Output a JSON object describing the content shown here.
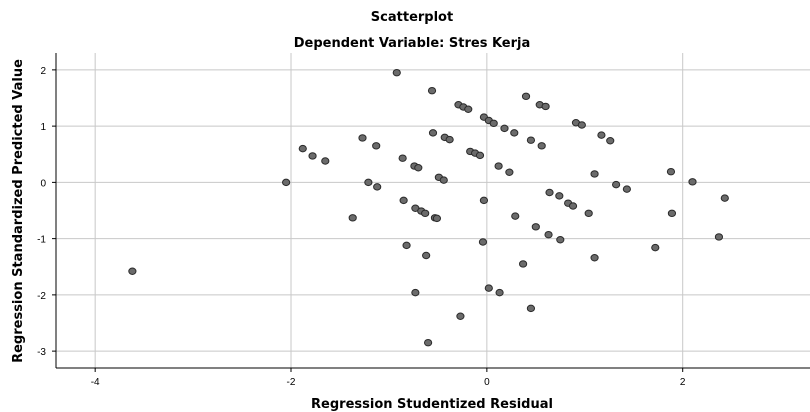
{
  "chart_data": {
    "type": "scatter",
    "title": "Scatterplot",
    "subtitle": "Dependent Variable: Stres Kerja",
    "xlabel": "Regression Studentized Residual",
    "ylabel": "Regression Standardized Predicted Value",
    "xlim": [
      -4.4,
      3.3
    ],
    "ylim": [
      -3.3,
      2.3
    ],
    "xticks": [
      -4,
      -2,
      0,
      2
    ],
    "xtick_labels": [
      "-4",
      "-2",
      "0",
      "2"
    ],
    "yticks": [
      2,
      1,
      0,
      -1,
      -2,
      -3
    ],
    "ytick_labels": [
      "2",
      "1",
      "0",
      "-1",
      "-2",
      "-3"
    ],
    "grid": true,
    "colors": {
      "point_fill": "#6b6b6b",
      "point_stroke": "#2a2a2a",
      "grid": "#c8c8c8",
      "axis": "#000000"
    },
    "points": [
      [
        -3.62,
        -1.58
      ],
      [
        -2.05,
        0.0
      ],
      [
        -1.88,
        0.6
      ],
      [
        -1.78,
        0.47
      ],
      [
        -1.65,
        0.38
      ],
      [
        -1.37,
        -0.63
      ],
      [
        -1.27,
        0.79
      ],
      [
        -1.21,
        0.0
      ],
      [
        -1.13,
        0.65
      ],
      [
        -1.12,
        -0.08
      ],
      [
        -0.92,
        1.95
      ],
      [
        -0.86,
        0.43
      ],
      [
        -0.85,
        -0.32
      ],
      [
        -0.82,
        -1.12
      ],
      [
        -0.74,
        0.29
      ],
      [
        -0.73,
        -0.46
      ],
      [
        -0.7,
        0.26
      ],
      [
        -0.67,
        -0.51
      ],
      [
        -0.63,
        -0.55
      ],
      [
        -0.62,
        -1.3
      ],
      [
        -0.56,
        1.63
      ],
      [
        -0.55,
        0.88
      ],
      [
        -0.53,
        -0.63
      ],
      [
        -0.51,
        -0.64
      ],
      [
        -0.49,
        0.09
      ],
      [
        -0.44,
        0.04
      ],
      [
        -0.73,
        -1.96
      ],
      [
        -0.43,
        0.8
      ],
      [
        -0.38,
        0.76
      ],
      [
        -0.29,
        1.38
      ],
      [
        -0.24,
        1.34
      ],
      [
        -0.19,
        1.3
      ],
      [
        -0.17,
        0.55
      ],
      [
        -0.12,
        0.52
      ],
      [
        -0.07,
        0.48
      ],
      [
        -0.03,
        1.16
      ],
      [
        -0.03,
        -0.32
      ],
      [
        -0.04,
        -1.06
      ],
      [
        0.02,
        1.1
      ],
      [
        0.02,
        -1.88
      ],
      [
        0.07,
        1.05
      ],
      [
        0.12,
        0.29
      ],
      [
        0.13,
        -1.96
      ],
      [
        0.18,
        0.96
      ],
      [
        0.23,
        0.18
      ],
      [
        0.28,
        0.88
      ],
      [
        0.29,
        -0.6
      ],
      [
        0.37,
        -1.45
      ],
      [
        0.4,
        1.53
      ],
      [
        0.45,
        -2.24
      ],
      [
        0.45,
        0.75
      ],
      [
        0.5,
        -0.79
      ],
      [
        0.54,
        1.38
      ],
      [
        0.56,
        0.65
      ],
      [
        0.6,
        1.35
      ],
      [
        0.63,
        -0.93
      ],
      [
        0.64,
        -0.18
      ],
      [
        0.74,
        -0.24
      ],
      [
        0.75,
        -1.02
      ],
      [
        0.83,
        -0.37
      ],
      [
        0.88,
        -0.42
      ],
      [
        0.91,
        1.06
      ],
      [
        0.97,
        1.02
      ],
      [
        1.04,
        -0.55
      ],
      [
        1.1,
        0.15
      ],
      [
        1.1,
        -1.34
      ],
      [
        1.17,
        0.84
      ],
      [
        1.26,
        0.74
      ],
      [
        1.32,
        -0.04
      ],
      [
        1.43,
        -0.12
      ],
      [
        1.72,
        -1.16
      ],
      [
        1.88,
        0.19
      ],
      [
        1.89,
        -0.55
      ],
      [
        2.1,
        0.01
      ],
      [
        2.37,
        -0.97
      ],
      [
        2.43,
        -0.28
      ],
      [
        -0.27,
        -2.38
      ],
      [
        -0.6,
        -2.85
      ]
    ]
  }
}
